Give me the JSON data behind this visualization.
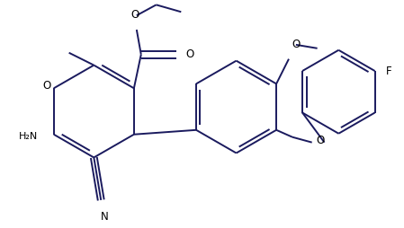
{
  "bg_color": "#ffffff",
  "line_color": "#1a1a5e",
  "lw": 1.4,
  "figsize": [
    4.49,
    2.54
  ],
  "dpi": 100,
  "xlim": [
    0,
    449
  ],
  "ylim": [
    0,
    254
  ]
}
